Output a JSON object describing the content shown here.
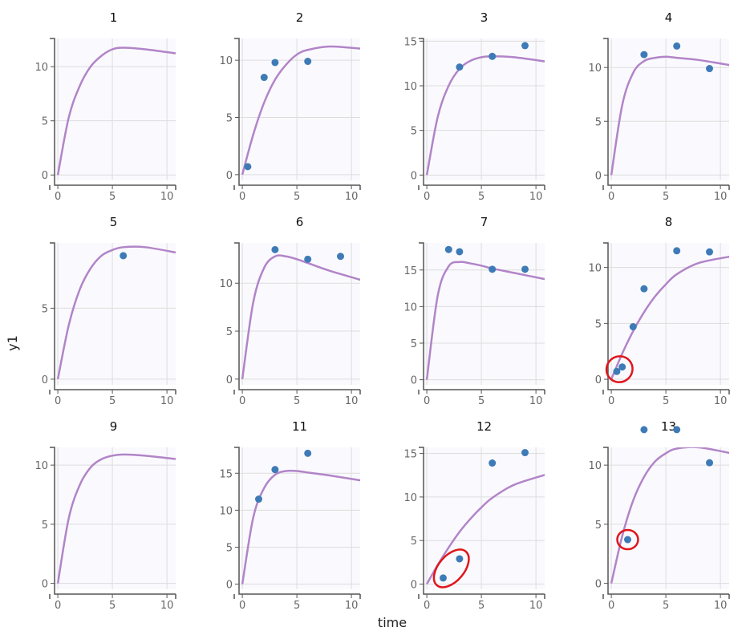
{
  "chart_data": {
    "type": "scatter",
    "xlabel": "time",
    "ylabel": "y1",
    "xlim": [
      -0.3,
      10.8
    ],
    "x_ticks": [
      0,
      5,
      10
    ],
    "grid": true,
    "colors": {
      "curve": "#b284c8",
      "points": "#3e7bb6",
      "highlight": "#e0161b",
      "plot_bg": "#fafafe",
      "grid": "#dddddd"
    },
    "curve_x": [
      0,
      1,
      2,
      3,
      4,
      5,
      6,
      8,
      11
    ],
    "panels": [
      {
        "title": "1",
        "ylim": [
          -0.5,
          12.6
        ],
        "y_ticks": [
          0,
          5,
          10
        ],
        "curve_y": [
          0,
          5.3,
          8.2,
          10,
          11,
          11.6,
          11.75,
          11.6,
          11.2
        ],
        "points": []
      },
      {
        "title": "2",
        "ylim": [
          -0.5,
          11.9
        ],
        "y_ticks": [
          0,
          5,
          10
        ],
        "curve_y": [
          0,
          3.5,
          6.3,
          8.3,
          9.6,
          10.5,
          10.9,
          11.2,
          11.0
        ],
        "points": [
          [
            0.5,
            0.7
          ],
          [
            2,
            8.5
          ],
          [
            3,
            9.8
          ],
          [
            6,
            9.9
          ]
        ]
      },
      {
        "title": "3",
        "ylim": [
          -0.6,
          15.3
        ],
        "y_ticks": [
          0,
          5,
          10,
          15
        ],
        "curve_y": [
          0,
          6.5,
          10,
          11.9,
          12.8,
          13.2,
          13.3,
          13.2,
          12.7
        ],
        "points": [
          [
            3,
            12.1
          ],
          [
            6,
            13.3
          ],
          [
            9,
            14.5
          ]
        ]
      },
      {
        "title": "4",
        "ylim": [
          -0.5,
          12.7
        ],
        "y_ticks": [
          0,
          5,
          10
        ],
        "curve_y": [
          0,
          6.5,
          9.5,
          10.6,
          10.9,
          11.0,
          10.9,
          10.7,
          10.2
        ],
        "points": [
          [
            3,
            11.2
          ],
          [
            6,
            12
          ],
          [
            9,
            9.9
          ]
        ]
      },
      {
        "title": "5",
        "ylim": [
          -0.4,
          9.6
        ],
        "y_ticks": [
          0,
          5
        ],
        "curve_y": [
          0,
          3.8,
          6.3,
          7.8,
          8.7,
          9.1,
          9.3,
          9.3,
          8.9
        ],
        "points": [
          [
            6,
            8.7
          ]
        ]
      },
      {
        "title": "6",
        "ylim": [
          -0.6,
          14.2
        ],
        "y_ticks": [
          0,
          5,
          10
        ],
        "curve_y": [
          0,
          8.0,
          11.6,
          12.8,
          12.8,
          12.5,
          12.1,
          11.3,
          10.3
        ],
        "points": [
          [
            3,
            13.5
          ],
          [
            6,
            12.5
          ],
          [
            9,
            12.8
          ]
        ]
      },
      {
        "title": "7",
        "ylim": [
          -0.7,
          18.7
        ],
        "y_ticks": [
          0,
          5,
          10,
          15
        ],
        "curve_y": [
          0,
          11.5,
          15.5,
          16.1,
          15.9,
          15.6,
          15.2,
          14.6,
          13.7
        ],
        "points": [
          [
            2,
            17.8
          ],
          [
            3,
            17.5
          ],
          [
            6,
            15.1
          ],
          [
            9,
            15.1
          ]
        ]
      },
      {
        "title": "8",
        "ylim": [
          -0.5,
          12.2
        ],
        "y_ticks": [
          0,
          5,
          10
        ],
        "curve_y": [
          0,
          2.3,
          4.3,
          6.0,
          7.4,
          8.5,
          9.4,
          10.4,
          11.0
        ],
        "points": [
          [
            0.5,
            0.7
          ],
          [
            1,
            1.1
          ],
          [
            2,
            4.7
          ],
          [
            3,
            8.1
          ],
          [
            6,
            11.5
          ],
          [
            9,
            11.4
          ]
        ],
        "highlighted_points": [
          0,
          1
        ]
      },
      {
        "title": "9",
        "ylim": [
          -0.5,
          11.5
        ],
        "y_ticks": [
          0,
          5,
          10
        ],
        "curve_y": [
          0,
          5.5,
          8.3,
          9.8,
          10.5,
          10.8,
          10.9,
          10.8,
          10.5
        ],
        "points": []
      },
      {
        "title": "11",
        "ylim": [
          -0.7,
          18.5
        ],
        "y_ticks": [
          0,
          5,
          10,
          15
        ],
        "curve_y": [
          0,
          9.0,
          13.0,
          14.8,
          15.3,
          15.3,
          15.1,
          14.7,
          14.0
        ],
        "points": [
          [
            1.5,
            11.5
          ],
          [
            3,
            15.5
          ],
          [
            6,
            17.7
          ]
        ]
      },
      {
        "title": "12",
        "ylim": [
          -0.6,
          15.7
        ],
        "y_ticks": [
          0,
          5,
          10,
          15
        ],
        "curve_y": [
          0,
          2.2,
          4.2,
          6.0,
          7.5,
          8.8,
          9.9,
          11.4,
          12.6
        ],
        "points": [
          [
            1.5,
            0.7
          ],
          [
            3,
            2.9
          ],
          [
            6,
            13.9
          ],
          [
            9,
            15.1
          ]
        ],
        "highlighted_points": [
          0,
          1
        ]
      },
      {
        "title": "13",
        "ylim": [
          -0.5,
          11.5
        ],
        "y_ticks": [
          0,
          5,
          10
        ],
        "curve_y": [
          0,
          4.0,
          7.0,
          9.0,
          10.3,
          11.0,
          11.4,
          11.5,
          11.0
        ],
        "points": [
          [
            1.5,
            3.7
          ],
          [
            3,
            13
          ],
          [
            6,
            13
          ],
          [
            9,
            10.2
          ]
        ],
        "highlighted_points": [
          0
        ]
      }
    ]
  }
}
